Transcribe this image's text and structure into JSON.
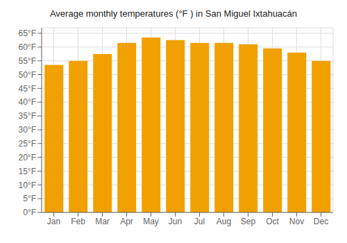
{
  "chart_data": {
    "type": "bar",
    "title": "Average monthly temperatures (°F ) in San Miguel Ixtahuacán",
    "categories": [
      "Jan",
      "Feb",
      "Mar",
      "Apr",
      "May",
      "Jun",
      "Jul",
      "Aug",
      "Sep",
      "Oct",
      "Nov",
      "Dec"
    ],
    "values": [
      53.5,
      55.0,
      57.5,
      61.5,
      63.5,
      62.5,
      61.5,
      61.5,
      61.0,
      59.5,
      58.0,
      55.0
    ],
    "color": "#F0A000",
    "ylim": [
      0,
      67
    ],
    "yticks": [
      {
        "value": 0,
        "label": "0°F"
      },
      {
        "value": 5,
        "label": "5°F"
      },
      {
        "value": 10,
        "label": "10°F"
      },
      {
        "value": 15,
        "label": "15°F"
      },
      {
        "value": 20,
        "label": "20°F"
      },
      {
        "value": 25,
        "label": "25°F"
      },
      {
        "value": 30,
        "label": "30°F"
      },
      {
        "value": 35,
        "label": "35°F"
      },
      {
        "value": 40,
        "label": "40°F"
      },
      {
        "value": 45,
        "label": "45°F"
      },
      {
        "value": 50,
        "label": "50°F"
      },
      {
        "value": 55,
        "label": "55°F"
      },
      {
        "value": 60,
        "label": "60°F"
      },
      {
        "value": 65,
        "label": "65°F"
      }
    ],
    "grid": true
  }
}
